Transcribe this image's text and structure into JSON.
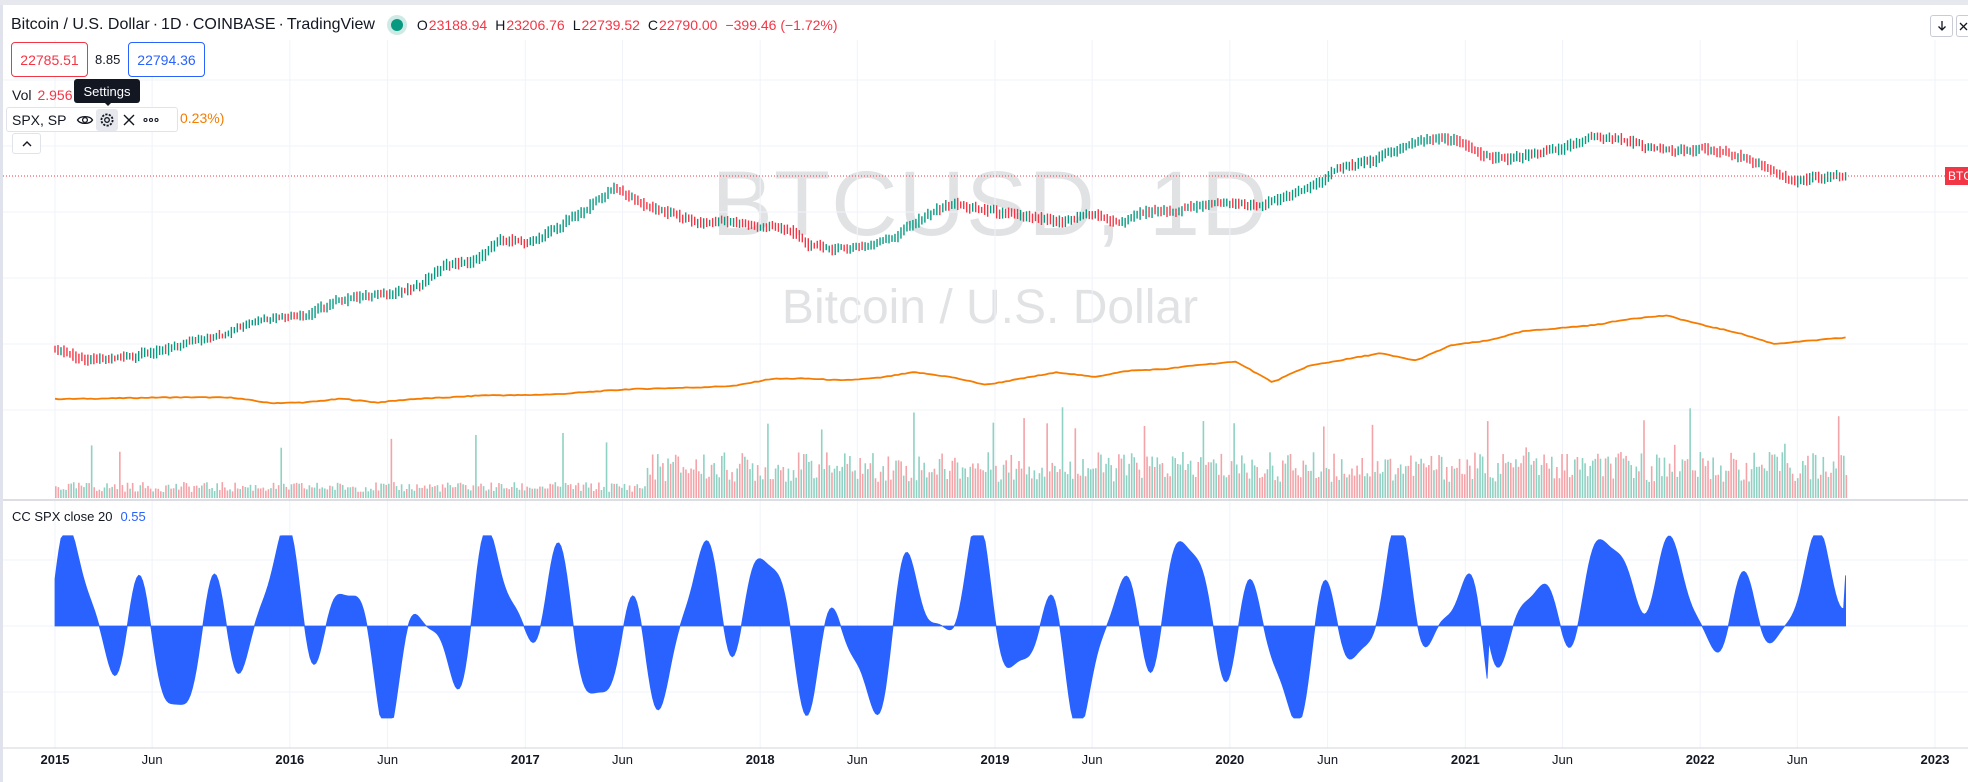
{
  "header": {
    "symbol_name": "Bitcoin / U.S. Dollar",
    "interval": "1D",
    "exchange": "COINBASE",
    "source": "TradingView",
    "ohlc": {
      "o_label": "O",
      "o": "23188.94",
      "h_label": "H",
      "h": "23206.76",
      "l_label": "L",
      "l": "22739.52",
      "c_label": "C",
      "c": "22790.00",
      "change": "−399.46 (−1.72%)"
    }
  },
  "quote": {
    "sell": "22785.51",
    "spread": "8.85",
    "buy": "22794.36"
  },
  "volume": {
    "label": "Vol",
    "value": "2.956"
  },
  "tooltip": {
    "text": "Settings"
  },
  "study": {
    "name": "SPX, SP",
    "value_fragment": "0.23%)"
  },
  "indicator": {
    "name": "CC SPX close 20",
    "value": "0.55"
  },
  "watermark": {
    "line1": "BTCUSD, 1D",
    "line2": "Bitcoin / U.S. Dollar"
  },
  "price_scale_label": "BTCUSD",
  "icons": [
    "eye-icon",
    "gear-icon",
    "close-icon",
    "more-icon",
    "chevron-up-icon",
    "arrow-down-icon"
  ],
  "colors": {
    "up": "#089981",
    "down": "#f23645",
    "spx": "#f57c00",
    "correlation": "#2962ff"
  },
  "chart_data": [
    {
      "type": "line",
      "title": "Bitcoin / U.S. Dollar",
      "series": [
        {
          "name": "BTCUSD",
          "values": [
            300,
            230,
            240,
            260,
            300,
            380,
            430,
            600,
            680,
            700,
            990,
            1150,
            1200,
            1450,
            2500,
            2700,
            4700,
            4300,
            6400,
            10000,
            17000,
            11000,
            9000,
            7000,
            7500,
            6500,
            6300,
            4000,
            3700,
            4000,
            5000,
            8000,
            11500,
            10000,
            9000,
            8000,
            7200,
            9000,
            7000,
            9500,
            9400,
            11300,
            11800,
            10700,
            13800,
            18000,
            29000,
            33000,
            45000,
            58000,
            57000,
            38000,
            35000,
            41000,
            47000,
            62000,
            57000,
            47000,
            43000,
            45000,
            39000,
            30000,
            20000,
            22000,
            23000
          ]
        },
        {
          "name": "SPX",
          "values": [
            2050,
            2060,
            2080,
            2100,
            2105,
            2090,
            1920,
            1940,
            2060,
            1940,
            2050,
            2100,
            2170,
            2170,
            2200,
            2280,
            2360,
            2390,
            2420,
            2470,
            2690,
            2700,
            2640,
            2720,
            2900,
            2750,
            2500,
            2700,
            2900,
            2750,
            2950,
            3000,
            3140,
            3230,
            2580,
            3100,
            3300,
            3500,
            3270,
            3760,
            3900,
            4200,
            4300,
            4400,
            4600,
            4700,
            4400,
            4150,
            3800,
            3900,
            4000
          ]
        }
      ],
      "x_ticks": [
        "2015",
        "Jun",
        "2016",
        "Jun",
        "2017",
        "Jun",
        "2018",
        "Jun",
        "2019",
        "Jun",
        "2020",
        "Jun",
        "2021",
        "Jun",
        "2022",
        "Jun",
        "2023"
      ],
      "x_range": [
        "2015-01-01",
        "2022-08-15"
      ]
    },
    {
      "type": "area",
      "title": "CC SPX close 20",
      "series": [
        {
          "name": "CC SPX close 20",
          "last": 0.55
        }
      ],
      "ylim": [
        -1,
        1
      ]
    }
  ]
}
